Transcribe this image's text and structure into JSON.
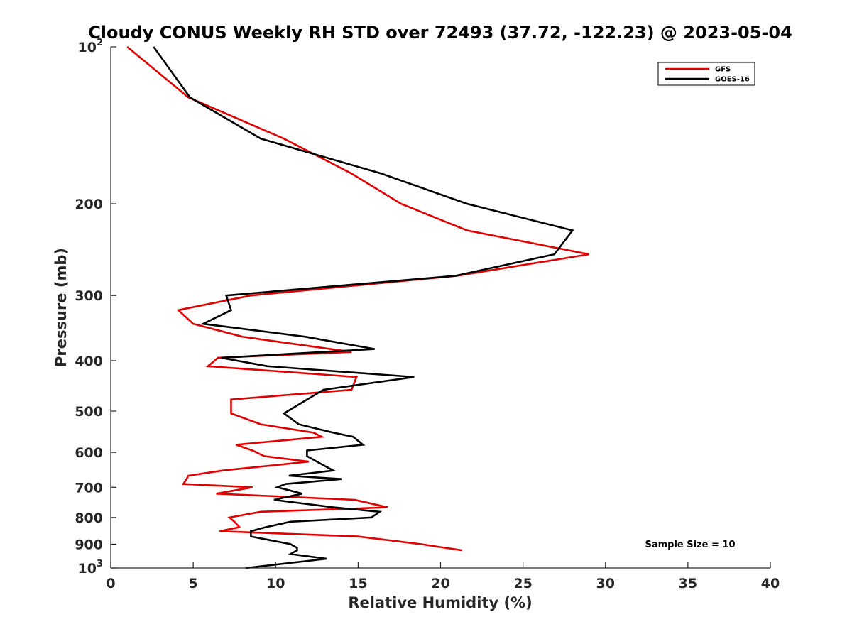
{
  "chart_data": {
    "type": "line",
    "title": "Cloudy CONUS Weekly RH STD over 72493 (37.72, -122.23) @ 2023-05-04",
    "xlabel": "Relative Humidity (%)",
    "ylabel": "Pressure (mb)",
    "xlim": [
      0,
      40
    ],
    "ylim": [
      100,
      1000
    ],
    "y_scale": "log",
    "y_reversed": true,
    "x_ticks": [
      "0",
      "5",
      "10",
      "15",
      "20",
      "25",
      "30",
      "35",
      "40"
    ],
    "y_ticks": [
      {
        "value": 100,
        "base": "10",
        "exp": "2"
      },
      {
        "value": 200,
        "label": "200"
      },
      {
        "value": 300,
        "label": "300"
      },
      {
        "value": 400,
        "label": "400"
      },
      {
        "value": 500,
        "label": "500"
      },
      {
        "value": 600,
        "label": "600"
      },
      {
        "value": 700,
        "label": "700"
      },
      {
        "value": 800,
        "label": "800"
      },
      {
        "value": 900,
        "label": "900"
      },
      {
        "value": 1000,
        "base": "10",
        "exp": "3"
      }
    ],
    "legend": {
      "placement": "top-right"
    },
    "annotation": "Sample Size = 10",
    "series": [
      {
        "name": "GFS",
        "color": "#e00000",
        "points": [
          [
            1.0,
            100
          ],
          [
            4.7,
            125
          ],
          [
            10.5,
            150
          ],
          [
            14.6,
            175
          ],
          [
            17.6,
            200
          ],
          [
            21.6,
            225
          ],
          [
            29.0,
            250
          ],
          [
            21.0,
            275
          ],
          [
            8.5,
            300
          ],
          [
            4.1,
            320
          ],
          [
            5.0,
            340
          ],
          [
            8.0,
            360
          ],
          [
            14.6,
            385
          ],
          [
            6.5,
            395
          ],
          [
            5.9,
            410
          ],
          [
            14.9,
            430
          ],
          [
            14.6,
            455
          ],
          [
            7.3,
            475
          ],
          [
            7.3,
            505
          ],
          [
            9.1,
            530
          ],
          [
            12.3,
            550
          ],
          [
            12.8,
            560
          ],
          [
            7.6,
            580
          ],
          [
            8.6,
            595
          ],
          [
            9.3,
            610
          ],
          [
            12.0,
            625
          ],
          [
            6.8,
            650
          ],
          [
            4.7,
            665
          ],
          [
            4.6,
            675
          ],
          [
            4.4,
            690
          ],
          [
            8.6,
            700
          ],
          [
            6.4,
            720
          ],
          [
            14.8,
            740
          ],
          [
            16.8,
            765
          ],
          [
            9.1,
            780
          ],
          [
            7.2,
            800
          ],
          [
            7.5,
            815
          ],
          [
            7.8,
            835
          ],
          [
            6.6,
            850
          ],
          [
            15.0,
            870
          ],
          [
            18.8,
            900
          ],
          [
            21.3,
            925
          ]
        ]
      },
      {
        "name": "GOES-16",
        "color": "#000000",
        "points": [
          [
            2.6,
            100
          ],
          [
            4.8,
            125
          ],
          [
            9.1,
            150
          ],
          [
            16.4,
            175
          ],
          [
            21.6,
            200
          ],
          [
            28.0,
            225
          ],
          [
            26.9,
            250
          ],
          [
            20.9,
            275
          ],
          [
            7.0,
            300
          ],
          [
            7.3,
            320
          ],
          [
            5.6,
            340
          ],
          [
            11.8,
            360
          ],
          [
            16.0,
            380
          ],
          [
            6.7,
            395
          ],
          [
            9.5,
            410
          ],
          [
            18.4,
            430
          ],
          [
            12.9,
            455
          ],
          [
            11.9,
            475
          ],
          [
            10.5,
            505
          ],
          [
            11.4,
            530
          ],
          [
            13.5,
            550
          ],
          [
            14.7,
            560
          ],
          [
            15.3,
            580
          ],
          [
            11.9,
            595
          ],
          [
            11.9,
            610
          ],
          [
            12.5,
            625
          ],
          [
            13.5,
            650
          ],
          [
            10.8,
            665
          ],
          [
            14.0,
            675
          ],
          [
            10.6,
            690
          ],
          [
            10.1,
            700
          ],
          [
            11.6,
            720
          ],
          [
            9.9,
            740
          ],
          [
            13.5,
            765
          ],
          [
            16.3,
            780
          ],
          [
            15.8,
            800
          ],
          [
            10.9,
            815
          ],
          [
            9.4,
            835
          ],
          [
            8.5,
            850
          ],
          [
            8.5,
            870
          ],
          [
            10.9,
            900
          ],
          [
            11.3,
            915
          ],
          [
            11.3,
            925
          ],
          [
            10.9,
            940
          ],
          [
            13.1,
            960
          ],
          [
            8.2,
            1000
          ]
        ]
      }
    ]
  }
}
